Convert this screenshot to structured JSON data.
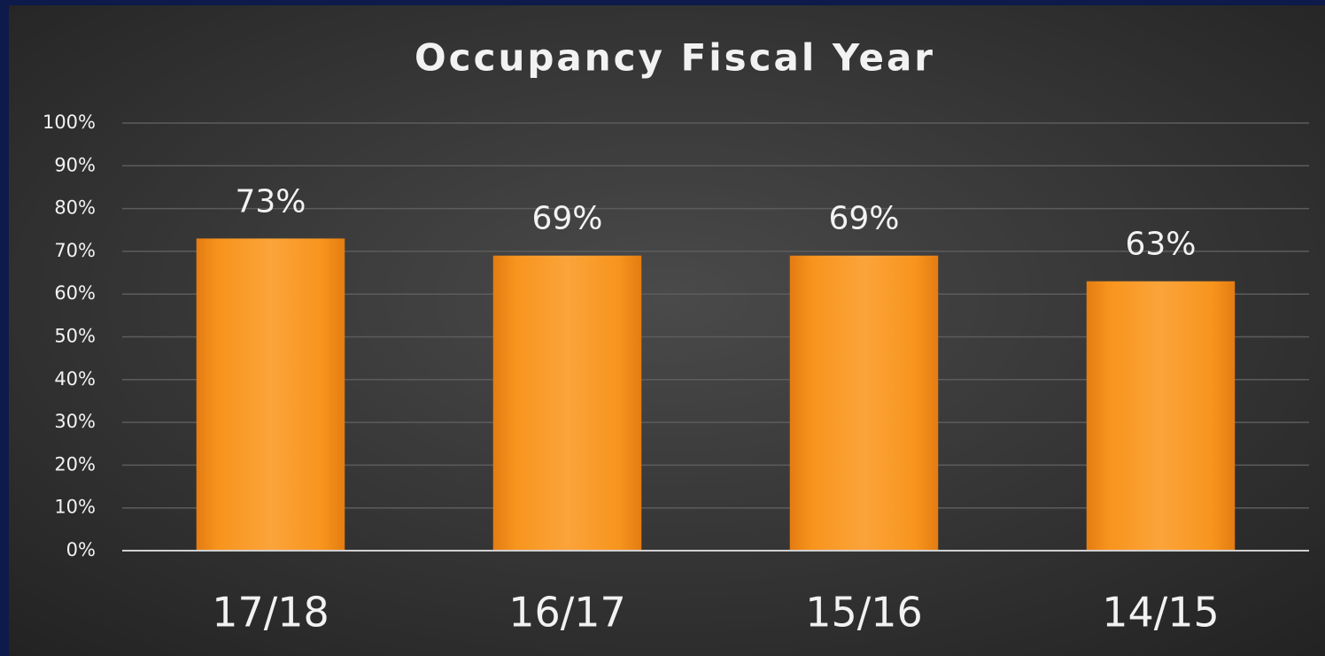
{
  "chart_data": {
    "type": "bar",
    "title": "Occupancy Fiscal Year",
    "categories": [
      "17/18",
      "16/17",
      "15/16",
      "14/15"
    ],
    "values": [
      73,
      69,
      69,
      63
    ],
    "value_labels": [
      "73%",
      "69%",
      "69%",
      "63%"
    ],
    "color": "#f7941d",
    "ylim": [
      0,
      100
    ],
    "yticks": [
      {
        "value": 0,
        "label": "0%"
      },
      {
        "value": 10,
        "label": "10%"
      },
      {
        "value": 20,
        "label": "20%"
      },
      {
        "value": 30,
        "label": "30%"
      },
      {
        "value": 40,
        "label": "40%"
      },
      {
        "value": 50,
        "label": "50%"
      },
      {
        "value": 60,
        "label": "60%"
      },
      {
        "value": 70,
        "label": "70%"
      },
      {
        "value": 80,
        "label": "80%"
      },
      {
        "value": 90,
        "label": "90%"
      },
      {
        "value": 100,
        "label": "100%"
      }
    ],
    "grid": true
  }
}
